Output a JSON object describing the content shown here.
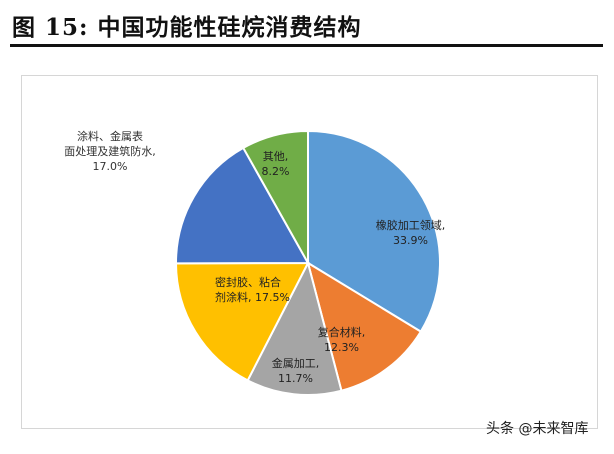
{
  "figure_title": "图  15:  中国功能性硅烷消费结构",
  "watermark": "头条 @未来智库",
  "chart_data": {
    "type": "pie",
    "title": "",
    "slices": [
      {
        "label": "橡胶加工领域,",
        "pct_label": "33.9%",
        "value": 33.9,
        "color": "#5b9bd5"
      },
      {
        "label": "复合材料,",
        "pct_label": "12.3%",
        "value": 12.3,
        "color": "#ed7d31"
      },
      {
        "label": "金属加工,",
        "pct_label": "11.7%",
        "value": 11.7,
        "color": "#a5a5a5"
      },
      {
        "label": "密封胶、粘合剂涂料,",
        "pct_label": "17.5%",
        "value": 17.5,
        "color": "#ffc000"
      },
      {
        "label": "涂料、金属表面处理及建筑防水,",
        "pct_label": "17.0%",
        "value": 17.0,
        "color": "#4472c4"
      },
      {
        "label": "其他,",
        "pct_label": "8.2%",
        "value": 8.2,
        "color": "#70ad47"
      }
    ]
  }
}
